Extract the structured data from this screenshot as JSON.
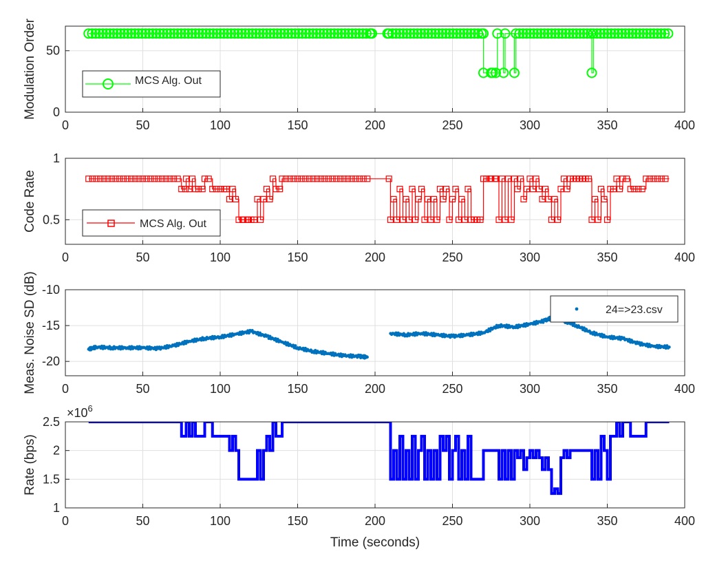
{
  "chart_data": [
    {
      "type": "line",
      "ylabel": "Modulation Order",
      "xlabel": "",
      "xlim": [
        0,
        400
      ],
      "ylim": [
        0,
        70
      ],
      "xticks": [
        "0",
        "50",
        "100",
        "150",
        "200",
        "250",
        "300",
        "350",
        "400"
      ],
      "yticks": [
        "0",
        "50"
      ],
      "grid": true,
      "legend": "bottom-left",
      "marker": "circle",
      "color": "#00ff00",
      "series": [
        {
          "name": "MCS Alg. Out",
          "x": [
            15,
            197,
            198,
            208,
            209,
            270,
            270,
            275,
            276,
            278,
            279,
            283,
            284,
            290,
            291,
            340,
            341,
            390
          ],
          "y": [
            64,
            64,
            64,
            64,
            64,
            64,
            32,
            32,
            32,
            32,
            64,
            32,
            64,
            32,
            64,
            32,
            64,
            64
          ]
        }
      ]
    },
    {
      "type": "line",
      "ylabel": "Code Rate",
      "xlabel": "",
      "xlim": [
        0,
        400
      ],
      "ylim": [
        0.3,
        1
      ],
      "xticks": [
        "0",
        "50",
        "100",
        "150",
        "200",
        "250",
        "300",
        "350",
        "400"
      ],
      "yticks": [
        "0.5",
        "1"
      ],
      "grid": true,
      "legend": "bottom-left",
      "marker": "square",
      "color": "#ff0000",
      "series": [
        {
          "name": "MCS Alg. Out",
          "x": [
            15,
            75,
            78,
            80,
            82,
            84,
            86,
            90,
            95,
            100,
            104,
            106,
            108,
            110,
            112,
            115,
            118,
            120,
            122,
            124,
            126,
            128,
            130,
            132,
            134,
            136,
            140,
            150,
            160,
            170,
            180,
            197,
            198,
            209,
            210,
            212,
            214,
            216,
            218,
            220,
            222,
            224,
            226,
            228,
            230,
            232,
            234,
            236,
            238,
            240,
            242,
            244,
            246,
            248,
            250,
            252,
            254,
            256,
            258,
            260,
            262,
            264,
            266,
            268,
            270,
            272,
            275,
            278,
            280,
            282,
            284,
            286,
            288,
            290,
            292,
            294,
            296,
            298,
            300,
            302,
            304,
            306,
            308,
            310,
            312,
            314,
            316,
            318,
            320,
            322,
            324,
            326,
            328,
            330,
            332,
            334,
            336,
            338,
            340,
            342,
            344,
            346,
            348,
            350,
            352,
            354,
            356,
            358,
            360,
            365,
            375,
            390
          ],
          "y": [
            0.833,
            0.75,
            0.833,
            0.75,
            0.833,
            0.75,
            0.75,
            0.833,
            0.75,
            0.75,
            0.75,
            0.667,
            0.75,
            0.667,
            0.5,
            0.5,
            0.5,
            0.5,
            0.5,
            0.667,
            0.5,
            0.667,
            0.75,
            0.667,
            0.833,
            0.75,
            0.833,
            0.833,
            0.833,
            0.833,
            0.833,
            0.833,
            0.833,
            0.833,
            0.5,
            0.667,
            0.5,
            0.75,
            0.5,
            0.667,
            0.5,
            0.75,
            0.5,
            0.667,
            0.75,
            0.5,
            0.667,
            0.5,
            0.667,
            0.5,
            0.75,
            0.667,
            0.75,
            0.5,
            0.667,
            0.75,
            0.5,
            0.667,
            0.5,
            0.75,
            0.5,
            0.5,
            0.5,
            0.5,
            0.833,
            0.833,
            0.833,
            0.833,
            0.5,
            0.833,
            0.5,
            0.833,
            0.5,
            0.833,
            0.75,
            0.833,
            0.667,
            0.75,
            0.833,
            0.75,
            0.833,
            0.75,
            0.667,
            0.75,
            0.667,
            0.5,
            0.667,
            0.5,
            0.75,
            0.833,
            0.75,
            0.833,
            0.833,
            0.833,
            0.833,
            0.833,
            0.833,
            0.833,
            0.5,
            0.667,
            0.5,
            0.75,
            0.667,
            0.5,
            0.75,
            0.75,
            0.833,
            0.75,
            0.833,
            0.75,
            0.833,
            0.833
          ]
        }
      ]
    },
    {
      "type": "scatter",
      "ylabel": "Meas. Noise SD (dB)",
      "xlabel": "",
      "xlim": [
        0,
        400
      ],
      "ylim": [
        -22,
        -10
      ],
      "xticks": [
        "0",
        "50",
        "100",
        "150",
        "200",
        "250",
        "300",
        "350",
        "400"
      ],
      "yticks": [
        "-20",
        "-15",
        "-10"
      ],
      "grid": true,
      "legend": "top-right",
      "color": "#0072bd",
      "series": [
        {
          "name": "24=>23.csv",
          "x": [
            15,
            20,
            30,
            40,
            50,
            60,
            70,
            80,
            90,
            100,
            110,
            120,
            130,
            140,
            150,
            160,
            170,
            180,
            190,
            195,
            210,
            220,
            230,
            240,
            250,
            260,
            270,
            280,
            290,
            300,
            310,
            315,
            320,
            330,
            340,
            350,
            360,
            370,
            380,
            390
          ],
          "y": [
            -18.3,
            -18.0,
            -18.1,
            -18.1,
            -18.1,
            -18.2,
            -17.8,
            -17.2,
            -16.8,
            -16.6,
            -16.2,
            -15.8,
            -16.5,
            -17.3,
            -18.1,
            -18.6,
            -18.9,
            -19.2,
            -19.3,
            -19.4,
            -16.1,
            -16.3,
            -16.1,
            -16.3,
            -16.5,
            -16.3,
            -16.0,
            -15.0,
            -15.2,
            -14.8,
            -14.3,
            -13.8,
            -14.2,
            -15.0,
            -16.0,
            -16.6,
            -16.8,
            -17.5,
            -17.9,
            -18.0
          ]
        }
      ]
    },
    {
      "type": "line",
      "ylabel": "Rate (bps)",
      "xlabel": "Time (seconds)",
      "xlim": [
        0,
        400
      ],
      "ylim": [
        1,
        2.5
      ],
      "yscale_label": "×10",
      "yscale_exp": "6",
      "xticks": [
        "0",
        "50",
        "100",
        "150",
        "200",
        "250",
        "300",
        "350",
        "400"
      ],
      "yticks": [
        "1",
        "1.5",
        "2",
        "2.5"
      ],
      "grid": true,
      "color": "#0000ff",
      "series": [
        {
          "x": [
            15,
            75,
            78,
            80,
            82,
            84,
            86,
            90,
            95,
            100,
            104,
            106,
            108,
            110,
            112,
            115,
            118,
            120,
            122,
            124,
            126,
            128,
            130,
            132,
            134,
            136,
            140,
            150,
            160,
            170,
            180,
            197,
            198,
            209,
            210,
            212,
            214,
            216,
            218,
            220,
            222,
            224,
            226,
            228,
            230,
            232,
            234,
            236,
            238,
            240,
            242,
            244,
            246,
            248,
            250,
            252,
            254,
            256,
            258,
            260,
            262,
            264,
            266,
            268,
            270,
            272,
            275,
            278,
            280,
            282,
            284,
            286,
            288,
            290,
            292,
            294,
            296,
            298,
            300,
            302,
            304,
            306,
            308,
            310,
            312,
            314,
            316,
            318,
            320,
            322,
            324,
            326,
            328,
            330,
            332,
            334,
            336,
            338,
            340,
            342,
            344,
            346,
            348,
            350,
            352,
            354,
            356,
            358,
            360,
            365,
            375,
            390
          ],
          "y": [
            2.5,
            2.25,
            2.5,
            2.25,
            2.5,
            2.25,
            2.25,
            2.5,
            2.25,
            2.25,
            2.25,
            2.0,
            2.25,
            2.0,
            1.5,
            1.5,
            1.5,
            1.5,
            1.5,
            2.0,
            1.5,
            2.0,
            2.25,
            2.0,
            2.5,
            2.25,
            2.5,
            2.5,
            2.5,
            2.5,
            2.5,
            2.5,
            2.5,
            2.5,
            1.5,
            2.0,
            1.5,
            2.25,
            1.5,
            2.0,
            1.5,
            2.25,
            1.5,
            2.0,
            2.25,
            1.5,
            2.0,
            1.5,
            2.0,
            1.5,
            2.25,
            2.0,
            2.25,
            1.5,
            2.0,
            2.25,
            1.5,
            2.0,
            1.5,
            2.25,
            1.5,
            1.5,
            1.5,
            1.5,
            2.0,
            2.0,
            2.0,
            2.0,
            1.5,
            2.0,
            1.5,
            2.0,
            1.5,
            2.0,
            1.875,
            2.0,
            1.667,
            1.875,
            2.0,
            1.875,
            2.0,
            1.875,
            1.667,
            1.875,
            1.667,
            1.25,
            1.333,
            1.25,
            1.875,
            2.0,
            1.875,
            2.0,
            2.0,
            2.0,
            2.0,
            2.0,
            2.0,
            2.0,
            1.5,
            2.0,
            1.5,
            2.25,
            2.0,
            1.5,
            2.25,
            2.25,
            2.5,
            2.25,
            2.5,
            2.25,
            2.5,
            2.5
          ]
        }
      ]
    }
  ]
}
